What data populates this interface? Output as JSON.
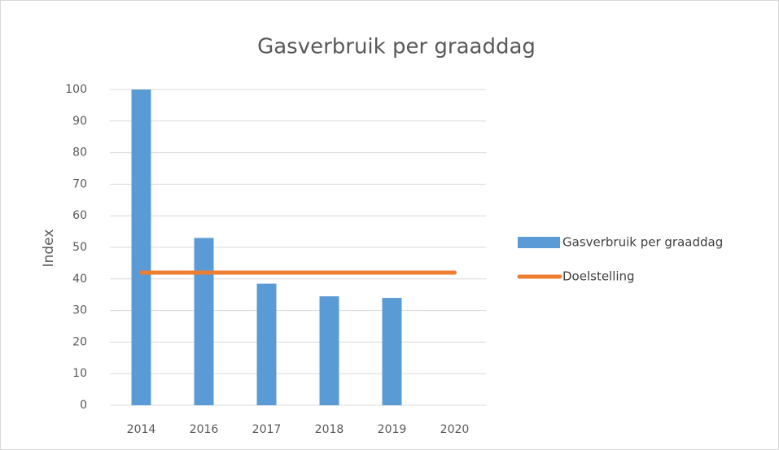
{
  "chart_data": {
    "type": "bar",
    "title": "Gasverbruik per graaddag",
    "y_label": "Index",
    "categories": [
      "2014",
      "2016",
      "2017",
      "2018",
      "2019",
      "2020"
    ],
    "series": [
      {
        "name": "Gasverbruik per graaddag",
        "type": "bar",
        "color": "#5b9bd5",
        "values": [
          100,
          53,
          38.5,
          34.5,
          34,
          null
        ]
      },
      {
        "name": "Doelstelling",
        "type": "line",
        "color": "#ed7d31",
        "values": [
          42,
          42,
          42,
          42,
          42,
          42
        ]
      }
    ],
    "ylim": [
      0,
      100
    ],
    "yticks": [
      0,
      10,
      20,
      30,
      40,
      50,
      60,
      70,
      80,
      90,
      100
    ],
    "grid": true,
    "legend": "right"
  }
}
